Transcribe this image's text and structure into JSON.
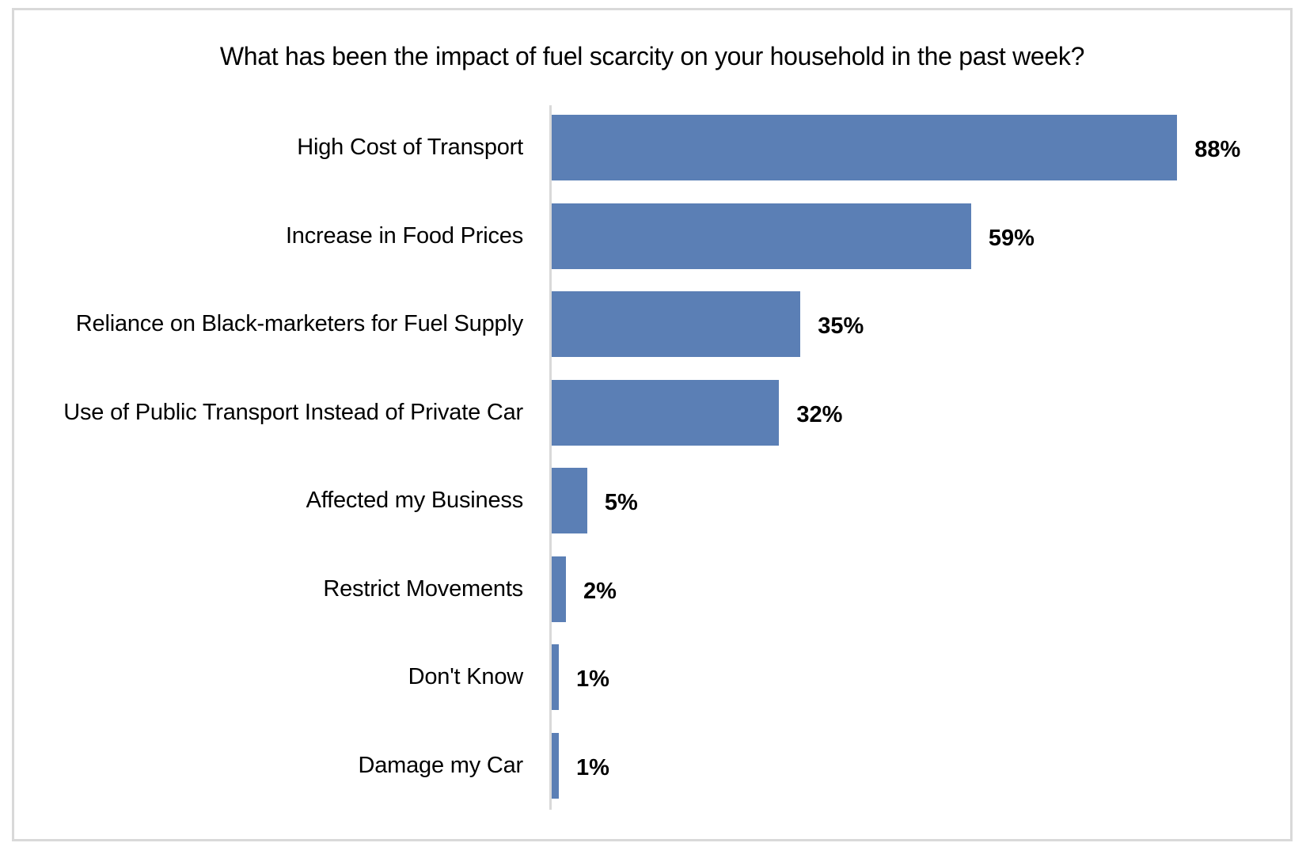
{
  "chart_data": {
    "type": "bar",
    "orientation": "horizontal",
    "title": "What has been the impact of fuel scarcity on your household in the past week?",
    "xlabel": "",
    "ylabel": "",
    "categories": [
      "High Cost of Transport",
      "Increase in Food Prices",
      "Reliance on Black-marketers for Fuel Supply",
      "Use of Public Transport Instead of Private Car",
      "Affected my Business",
      "Restrict Movements",
      "Don't Know",
      "Damage my Car"
    ],
    "values": [
      88,
      59,
      35,
      32,
      5,
      2,
      1,
      1
    ],
    "value_labels": [
      "88%",
      "59%",
      "35%",
      "32%",
      "5%",
      "2%",
      "1%",
      "1%"
    ],
    "unit": "%",
    "xlim": [
      0,
      100
    ],
    "grid": false,
    "legend": null,
    "bar_color": "#5b7fb5"
  }
}
